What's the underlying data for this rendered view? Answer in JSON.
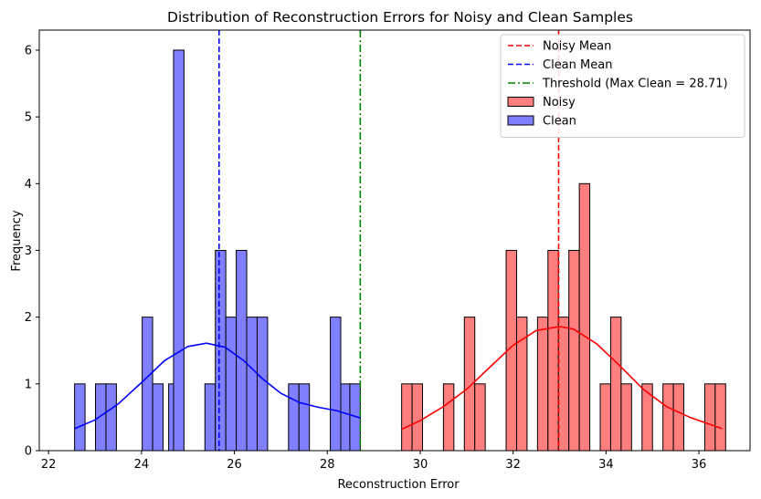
{
  "chart_data": {
    "type": "histogram",
    "title": "Distribution of Reconstruction Errors for Noisy and Clean Samples",
    "xlabel": "Reconstruction Error",
    "ylabel": "Frequency",
    "xlim": [
      21.8,
      37.1
    ],
    "ylim": [
      0,
      6.3
    ],
    "xticks": [
      22,
      24,
      26,
      28,
      30,
      32,
      34,
      36
    ],
    "yticks": [
      0,
      1,
      2,
      3,
      4,
      5,
      6
    ],
    "bin_width": 0.225,
    "grid": false,
    "legend_position": "top-right",
    "series": [
      {
        "name": "Noisy",
        "color": "#ff0000",
        "fill": "#ff7f7f",
        "bins": [
          {
            "x": 29.6,
            "count": 1
          },
          {
            "x": 29.825,
            "count": 1
          },
          {
            "x": 30.5,
            "count": 1
          },
          {
            "x": 30.95,
            "count": 2
          },
          {
            "x": 31.175,
            "count": 1
          },
          {
            "x": 31.85,
            "count": 3
          },
          {
            "x": 32.075,
            "count": 2
          },
          {
            "x": 32.525,
            "count": 2
          },
          {
            "x": 32.75,
            "count": 3
          },
          {
            "x": 32.975,
            "count": 2
          },
          {
            "x": 33.2,
            "count": 3
          },
          {
            "x": 33.425,
            "count": 4
          },
          {
            "x": 33.875,
            "count": 1
          },
          {
            "x": 34.1,
            "count": 2
          },
          {
            "x": 34.325,
            "count": 1
          },
          {
            "x": 34.775,
            "count": 1
          },
          {
            "x": 35.225,
            "count": 1
          },
          {
            "x": 35.45,
            "count": 1
          },
          {
            "x": 36.125,
            "count": 1
          },
          {
            "x": 36.35,
            "count": 1
          }
        ],
        "kde": [
          [
            29.6,
            0.32
          ],
          [
            30.0,
            0.45
          ],
          [
            30.5,
            0.66
          ],
          [
            31.0,
            0.92
          ],
          [
            31.5,
            1.25
          ],
          [
            32.0,
            1.58
          ],
          [
            32.5,
            1.8
          ],
          [
            33.0,
            1.86
          ],
          [
            33.3,
            1.82
          ],
          [
            33.8,
            1.6
          ],
          [
            34.3,
            1.27
          ],
          [
            34.8,
            0.92
          ],
          [
            35.3,
            0.66
          ],
          [
            35.8,
            0.5
          ],
          [
            36.5,
            0.33
          ]
        ]
      },
      {
        "name": "Clean",
        "color": "#0000ff",
        "fill": "#7f7fff",
        "bins": [
          {
            "x": 22.56,
            "count": 1
          },
          {
            "x": 23.01,
            "count": 1
          },
          {
            "x": 23.235,
            "count": 1
          },
          {
            "x": 24.585,
            "count": 1
          },
          {
            "x": 24.015,
            "count": 2
          },
          {
            "x": 24.24,
            "count": 1
          },
          {
            "x": 24.69,
            "count": 6
          },
          {
            "x": 25.365,
            "count": 1
          },
          {
            "x": 25.59,
            "count": 3
          },
          {
            "x": 25.815,
            "count": 2
          },
          {
            "x": 26.04,
            "count": 3
          },
          {
            "x": 26.265,
            "count": 2
          },
          {
            "x": 26.49,
            "count": 2
          },
          {
            "x": 27.165,
            "count": 1
          },
          {
            "x": 27.39,
            "count": 1
          },
          {
            "x": 28.065,
            "count": 2
          },
          {
            "x": 28.29,
            "count": 1
          },
          {
            "x": 28.485,
            "count": 1
          }
        ],
        "kde": [
          [
            22.56,
            0.33
          ],
          [
            23.0,
            0.46
          ],
          [
            23.5,
            0.7
          ],
          [
            24.0,
            1.02
          ],
          [
            24.5,
            1.35
          ],
          [
            25.0,
            1.56
          ],
          [
            25.4,
            1.61
          ],
          [
            25.8,
            1.55
          ],
          [
            26.2,
            1.35
          ],
          [
            26.6,
            1.08
          ],
          [
            27.0,
            0.86
          ],
          [
            27.4,
            0.72
          ],
          [
            27.8,
            0.65
          ],
          [
            28.2,
            0.6
          ],
          [
            28.71,
            0.49
          ]
        ]
      }
    ],
    "vlines": [
      {
        "name": "Noisy Mean",
        "x": 32.98,
        "color": "#ff0000",
        "style": "dashed"
      },
      {
        "name": "Clean Mean",
        "x": 25.67,
        "color": "#0000ff",
        "style": "dashed"
      },
      {
        "name": "Threshold (Max Clean = 28.71)",
        "x": 28.71,
        "color": "#008000",
        "style": "dashdot"
      }
    ]
  }
}
